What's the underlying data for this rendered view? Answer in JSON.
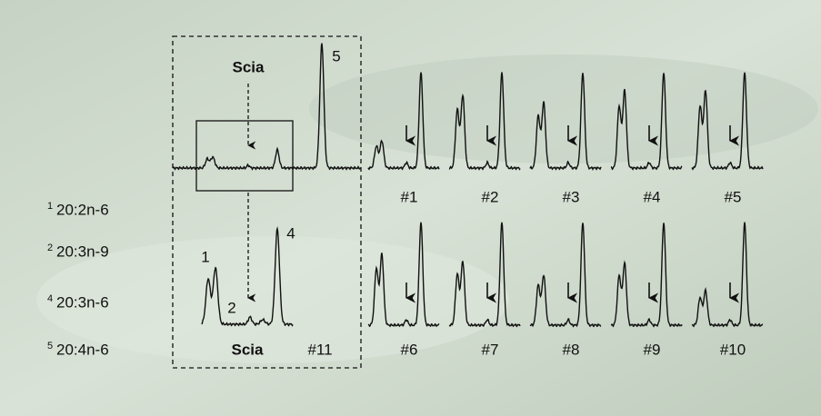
{
  "zoom_source": {
    "label": "Scia",
    "peak_label": "5"
  },
  "zoom": {
    "label": "Scia",
    "sample": "#11",
    "peak_labels": [
      "1",
      "2",
      "4"
    ]
  },
  "legend": [
    {
      "index": "1",
      "name": "20:2n-6"
    },
    {
      "index": "2",
      "name": "20:3n-9"
    },
    {
      "index": "4",
      "name": "20:3n-6"
    },
    {
      "index": "5",
      "name": "20:4n-6"
    }
  ],
  "samples": [
    "#1",
    "#2",
    "#3",
    "#4",
    "#5",
    "#6",
    "#7",
    "#8",
    "#9",
    "#10"
  ]
}
